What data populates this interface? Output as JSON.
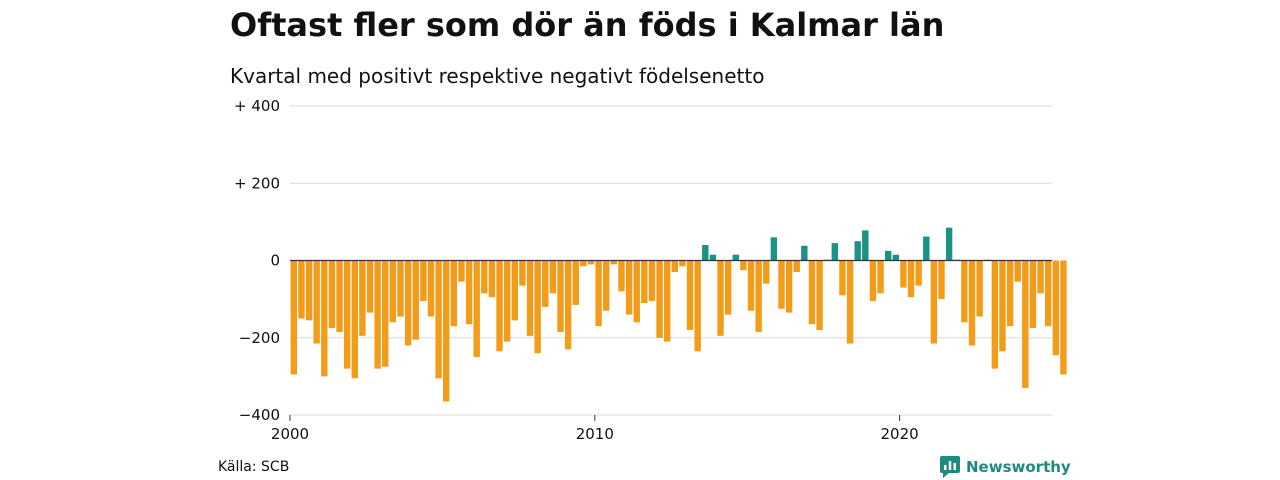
{
  "header": {
    "title": "Oftast fler som dör än föds i Kalmar län",
    "subtitle": "Kvartal med positivt respektive negativt födelsenetto"
  },
  "footer": {
    "source": "Källa: SCB",
    "brand": "Newsworthy"
  },
  "colors": {
    "negative": "#f39c1a",
    "positive": "#1a9285",
    "grid": "#d9d9d9",
    "baseline": "#333333",
    "brand": "#1f8a7e"
  },
  "icons": {
    "brand_logo": "newsworthy-logo-icon"
  },
  "chart_data": {
    "type": "bar",
    "title": "Oftast fler som dör än föds i Kalmar län",
    "subtitle": "Kvartal med positivt respektive negativt födelsenetto",
    "x_start": 2000,
    "quarters_per_year": 4,
    "ylim": [
      -400,
      400
    ],
    "yticks": [
      {
        "value": 400,
        "label": "+ 400"
      },
      {
        "value": 200,
        "label": "+ 200"
      },
      {
        "value": 0,
        "label": "0"
      },
      {
        "value": -200,
        "label": "−200"
      },
      {
        "value": -400,
        "label": "−400"
      }
    ],
    "xticks": [
      {
        "value": 2000,
        "label": "2000"
      },
      {
        "value": 2010,
        "label": "2010"
      },
      {
        "value": 2020,
        "label": "2020"
      }
    ],
    "grid": true,
    "values": [
      -295,
      -150,
      -155,
      -215,
      -300,
      -175,
      -185,
      -280,
      -305,
      -195,
      -135,
      -280,
      -275,
      -160,
      -145,
      -220,
      -205,
      -105,
      -145,
      -305,
      -365,
      -170,
      -55,
      -165,
      -250,
      -85,
      -95,
      -235,
      -210,
      -155,
      -65,
      -195,
      -240,
      -120,
      -85,
      -185,
      -230,
      -115,
      -15,
      -10,
      -170,
      -130,
      -10,
      -80,
      -140,
      -160,
      -110,
      -105,
      -200,
      -210,
      -30,
      -15,
      -180,
      -235,
      40,
      15,
      -195,
      -140,
      15,
      -25,
      -130,
      -185,
      -60,
      60,
      -125,
      -135,
      -30,
      38,
      -165,
      -180,
      2,
      45,
      -90,
      -215,
      50,
      78,
      -105,
      -85,
      25,
      15,
      -70,
      -95,
      -65,
      62,
      -215,
      -100,
      85,
      2,
      -160,
      -220,
      -145,
      2,
      -280,
      -235,
      -170,
      -55,
      -330,
      -175,
      -85,
      -170,
      -245,
      -295
    ]
  }
}
